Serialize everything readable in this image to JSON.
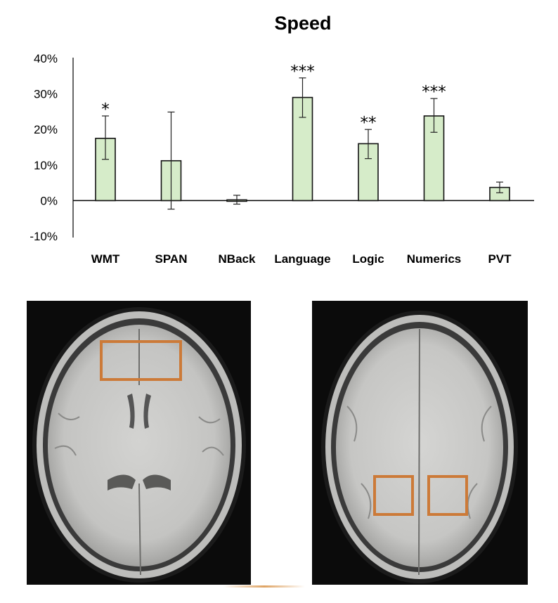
{
  "chart_data": {
    "type": "bar",
    "title": "Speed",
    "xlabel": "",
    "ylabel": "",
    "categories": [
      "WMT",
      "SPAN",
      "NBack",
      "Language",
      "Logic",
      "Numerics",
      "PVT"
    ],
    "values": [
      17.5,
      11.2,
      0.2,
      29.0,
      16.0,
      23.8,
      3.7
    ],
    "error_low": [
      11.6,
      -2.4,
      -1.0,
      23.4,
      11.8,
      19.2,
      2.2
    ],
    "error_high": [
      23.8,
      24.9,
      1.5,
      34.5,
      20.0,
      28.7,
      5.2
    ],
    "significance": [
      "*",
      "",
      "",
      "***",
      "**",
      "***",
      ""
    ],
    "ylim": [
      -10,
      40
    ],
    "yticks": [
      -10,
      0,
      10,
      20,
      30,
      40
    ],
    "ytick_labels": [
      "-10%",
      "0%",
      "10%",
      "20%",
      "30%",
      "40%"
    ],
    "bar_color": "#d6ecc9",
    "bar_edge_color": "#111111",
    "grid": false,
    "legend": "none"
  },
  "images": {
    "left_scan": {
      "type": "axial MRI slice",
      "highlight_regions": 1
    },
    "right_scan": {
      "type": "axial MRI slice",
      "highlight_regions": 2
    },
    "highlight_color": "#cc7a38"
  }
}
